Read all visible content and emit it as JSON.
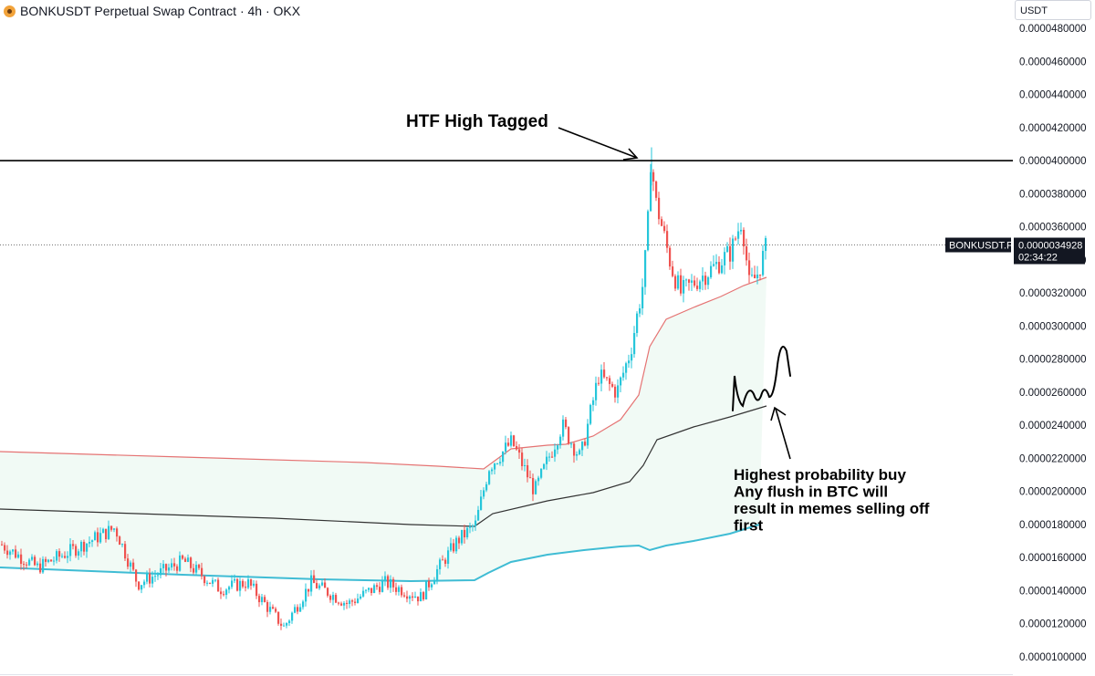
{
  "header": {
    "title": "BONKUSDT Perpetual Swap Contract · 4h · OKX",
    "currency": "USDT"
  },
  "chart_data": {
    "type": "candlestick",
    "symbol": "BONKUSDT.P",
    "ylim": [
      1e-05,
      4.9e-05
    ],
    "y_ticks": [
      "0.0000480000",
      "0.0000460000",
      "0.0000440000",
      "0.0000420000",
      "0.0000400000",
      "0.0000380000",
      "0.0000360000",
      "0.0000340000",
      "0.0000320000",
      "0.0000300000",
      "0.0000280000",
      "0.0000260000",
      "0.0000240000",
      "0.0000220000",
      "0.0000200000",
      "0.0000180000",
      "0.0000160000",
      "0.0000140000",
      "0.0000120000",
      "0.0000100000"
    ],
    "last_price": "0.0000034928",
    "countdown": "02:34:22",
    "horizontal_level": 4e-05,
    "colors": {
      "up": "#26c6da",
      "down": "#ef5350",
      "upper_band": "#e57373",
      "mid_band": "#333333",
      "lower_band": "#3fbcd4",
      "fill": "#f1faf5"
    },
    "annotations": {
      "top": "HTF High Tagged",
      "buy": [
        "Highest probability buy",
        "Any flush in BTC will",
        "result in memes selling off",
        "first"
      ]
    }
  }
}
